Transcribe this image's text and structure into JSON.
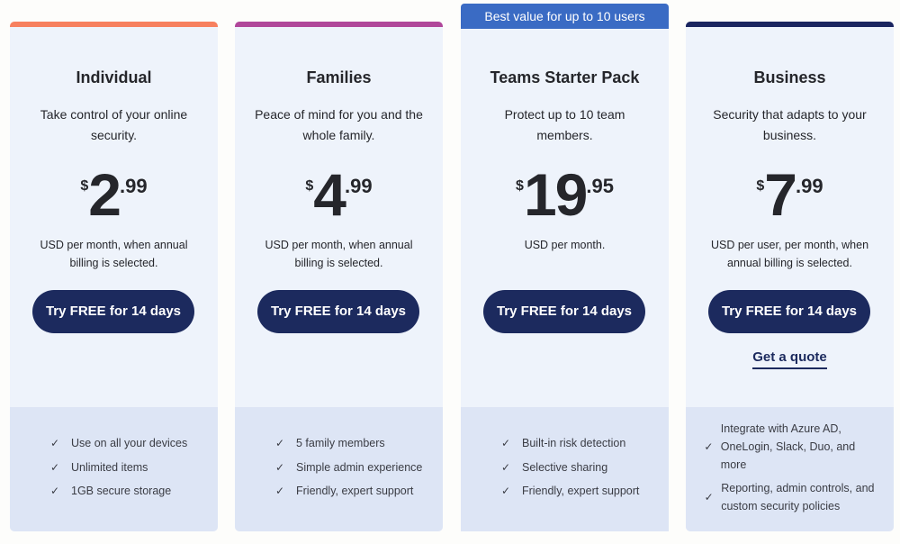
{
  "colors": {
    "individual": "#f7805f",
    "families": "#b0479a",
    "teams": "#3a6bc4",
    "business": "#1a2560",
    "button": "#1c2a5e"
  },
  "plans": [
    {
      "name": "Individual",
      "desc": "Take control of your online security.",
      "currency": "$",
      "price_int": "2",
      "price_dec": ".99",
      "note": "USD per month, when annual billing is selected.",
      "cta": "Try FREE for 14 days",
      "features": [
        "Use on all your devices",
        "Unlimited items",
        "1GB secure storage"
      ]
    },
    {
      "name": "Families",
      "desc": "Peace of mind for you and the whole family.",
      "currency": "$",
      "price_int": "4",
      "price_dec": ".99",
      "note": "USD per month, when annual billing is selected.",
      "cta": "Try FREE for 14 days",
      "features": [
        "5 family members",
        "Simple admin experience",
        "Friendly, expert support"
      ]
    },
    {
      "name": "Teams Starter Pack",
      "banner": "Best value for up to 10 users",
      "desc": "Protect up to 10 team members.",
      "currency": "$",
      "price_int": "19",
      "price_dec": ".95",
      "note": "USD per month.",
      "cta": "Try FREE for 14 days",
      "features": [
        "Built-in risk detection",
        "Selective sharing",
        "Friendly, expert support"
      ]
    },
    {
      "name": "Business",
      "desc": "Security that adapts to your business.",
      "currency": "$",
      "price_int": "7",
      "price_dec": ".99",
      "note": "USD per user, per month, when annual billing is selected.",
      "cta": "Try FREE for 14 days",
      "secondary": "Get a quote",
      "features": [
        "Integrate with Azure AD, OneLogin, Slack, Duo, and more",
        "Reporting, admin controls, and custom security policies"
      ]
    }
  ],
  "check_icon": "✓"
}
